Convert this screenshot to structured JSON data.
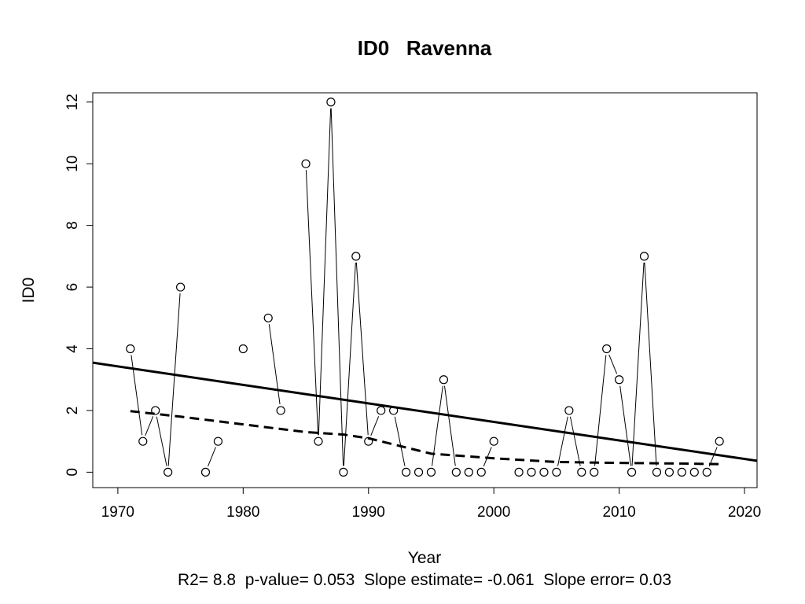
{
  "chart_data": {
    "type": "line",
    "title": "ID0   Ravenna",
    "xlabel": "Year",
    "ylabel": "ID0",
    "xlim": [
      1968,
      2021
    ],
    "ylim": [
      -0.5,
      12.3
    ],
    "x_ticks": [
      1970,
      1980,
      1990,
      2000,
      2010,
      2020
    ],
    "y_ticks": [
      0,
      2,
      4,
      6,
      8,
      10,
      12
    ],
    "grid": false,
    "footnote": "R2= 8.8  p-value= 0.053  Slope estimate= -0.061  Slope error= 0.03",
    "series": [
      {
        "style": "points-connected",
        "x": [
          1971,
          1972,
          1973,
          1974,
          1975,
          1977,
          1978,
          1980,
          1982,
          1983,
          1985,
          1986,
          1987,
          1988,
          1989,
          1990,
          1991,
          1992,
          1993,
          1994,
          1995,
          1996,
          1997,
          1998,
          1999,
          2000,
          2002,
          2003,
          2004,
          2005,
          2006,
          2007,
          2008,
          2009,
          2010,
          2011,
          2012,
          2013,
          2014,
          2015,
          2016,
          2017,
          2018
        ],
        "y": [
          4,
          1,
          2,
          0,
          6,
          0,
          1,
          4,
          5,
          2,
          10,
          1,
          12,
          0,
          7,
          1,
          2,
          2,
          0,
          0,
          0,
          3,
          0,
          0,
          0,
          1,
          0,
          0,
          0,
          0,
          2,
          0,
          0,
          4,
          3,
          0,
          7,
          0,
          0,
          0,
          0,
          0,
          1
        ]
      },
      {
        "style": "solid-trend",
        "x": [
          1968,
          2021
        ],
        "y": [
          3.55,
          0.37
        ]
      },
      {
        "style": "dashed-smooth",
        "x": [
          1971,
          1975,
          1980,
          1985,
          1988,
          1990,
          1993,
          1995,
          2000,
          2005,
          2010,
          2015,
          2018
        ],
        "y": [
          1.98,
          1.8,
          1.55,
          1.3,
          1.22,
          1.1,
          0.8,
          0.6,
          0.45,
          0.33,
          0.3,
          0.28,
          0.26
        ]
      }
    ]
  }
}
